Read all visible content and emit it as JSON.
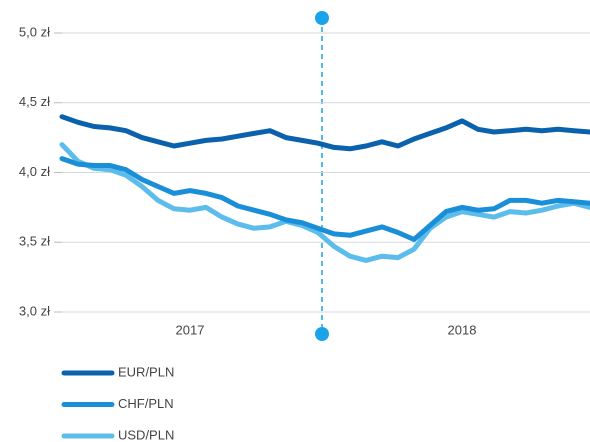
{
  "chart_data": {
    "type": "line",
    "categories": [
      null,
      null,
      null,
      null,
      null,
      null,
      null,
      null,
      "2017",
      null,
      null,
      null,
      null,
      null,
      null,
      null,
      null,
      null,
      null,
      null,
      null,
      null,
      null,
      null,
      null,
      "2018",
      null,
      null,
      null,
      null,
      null,
      null,
      null,
      null
    ],
    "series": [
      {
        "name": "EUR/PLN",
        "color": "#0a62ad",
        "values": [
          4.4,
          4.36,
          4.33,
          4.32,
          4.3,
          4.25,
          4.22,
          4.19,
          4.21,
          4.23,
          4.24,
          4.26,
          4.28,
          4.3,
          4.25,
          4.23,
          4.21,
          4.18,
          4.17,
          4.19,
          4.22,
          4.19,
          4.24,
          4.28,
          4.32,
          4.37,
          4.31,
          4.29,
          4.3,
          4.31,
          4.3,
          4.31,
          4.3,
          4.29
        ]
      },
      {
        "name": "CHF/PLN",
        "color": "#1a8fd8",
        "values": [
          4.1,
          4.06,
          4.05,
          4.05,
          4.02,
          3.95,
          3.9,
          3.85,
          3.87,
          3.85,
          3.82,
          3.76,
          3.73,
          3.7,
          3.66,
          3.64,
          3.6,
          3.56,
          3.55,
          3.58,
          3.61,
          3.57,
          3.52,
          3.62,
          3.72,
          3.75,
          3.73,
          3.74,
          3.8,
          3.8,
          3.78,
          3.8,
          3.79,
          3.78
        ]
      },
      {
        "name": "USD/PLN",
        "color": "#5cbcec",
        "values": [
          4.2,
          4.08,
          4.03,
          4.02,
          3.98,
          3.9,
          3.8,
          3.74,
          3.73,
          3.75,
          3.68,
          3.63,
          3.6,
          3.61,
          3.65,
          3.62,
          3.57,
          3.47,
          3.4,
          3.37,
          3.4,
          3.39,
          3.45,
          3.6,
          3.68,
          3.72,
          3.7,
          3.68,
          3.72,
          3.71,
          3.73,
          3.76,
          3.78,
          3.75
        ]
      }
    ],
    "ylim": [
      3.0,
      5.0
    ],
    "yticks": [
      {
        "value": 3.0,
        "label": "3,0 zł"
      },
      {
        "value": 3.5,
        "label": "3,5 zł"
      },
      {
        "value": 4.0,
        "label": "4,0 zł"
      },
      {
        "value": 4.5,
        "label": "4,5 zł"
      },
      {
        "value": 5.0,
        "label": "5,0 zł"
      }
    ],
    "grid": true
  }
}
